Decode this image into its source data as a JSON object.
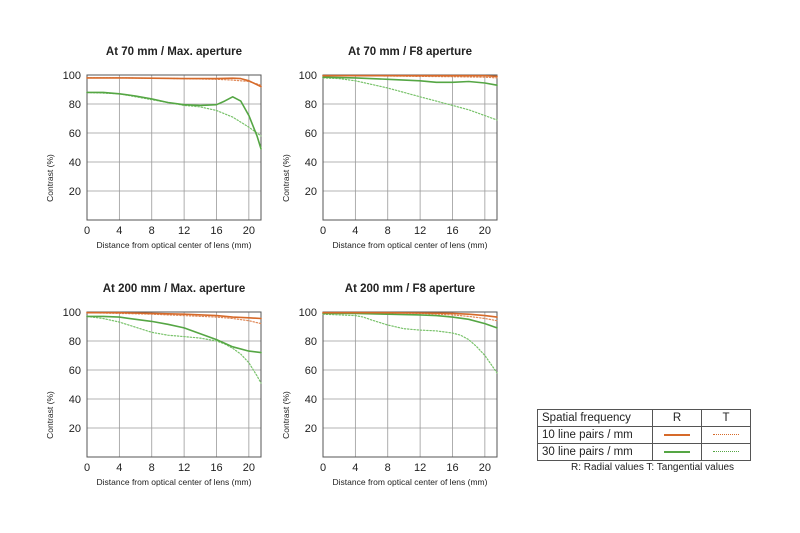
{
  "chart_data": [
    {
      "type": "line",
      "title": "At 70 mm / Max. aperture",
      "xlabel": "Distance from optical center of lens (mm)",
      "ylabel": "Contrast (%)",
      "xlim": [
        0,
        21.5
      ],
      "ylim": [
        0,
        100
      ],
      "xticks": [
        0,
        4,
        8,
        12,
        16,
        20
      ],
      "yticks": [
        20,
        40,
        60,
        80,
        100
      ],
      "grid": true,
      "series": [
        {
          "freq": "10 line pairs / mm",
          "kind": "R",
          "x": [
            0,
            4,
            8,
            12,
            16,
            18,
            19,
            20,
            21.5
          ],
          "y": [
            98,
            98,
            97.8,
            97.5,
            97.5,
            97.8,
            97.5,
            96,
            92
          ]
        },
        {
          "freq": "10 line pairs / mm",
          "kind": "T",
          "x": [
            0,
            4,
            8,
            12,
            16,
            18,
            19,
            20,
            21.5
          ],
          "y": [
            98,
            98,
            97.8,
            97.5,
            97,
            96.5,
            96,
            95.5,
            93
          ]
        },
        {
          "freq": "30 line pairs / mm",
          "kind": "R",
          "x": [
            0,
            2,
            4,
            6,
            8,
            10,
            12,
            14,
            16,
            17,
            18,
            19,
            20,
            21,
            21.5
          ],
          "y": [
            88,
            88,
            87,
            85.5,
            83.5,
            81,
            79.5,
            79,
            79.5,
            82,
            85,
            82,
            72,
            58,
            49
          ]
        },
        {
          "freq": "30 line pairs / mm",
          "kind": "T",
          "x": [
            0,
            4,
            8,
            12,
            14,
            16,
            18,
            20,
            21.5
          ],
          "y": [
            88,
            87,
            83,
            79,
            78,
            75.5,
            71,
            64,
            58
          ]
        }
      ]
    },
    {
      "type": "line",
      "title": "At 70 mm / F8 aperture",
      "xlabel": "Distance from optical center of lens (mm)",
      "ylabel": "Contrast (%)",
      "xlim": [
        0,
        21.5
      ],
      "ylim": [
        0,
        100
      ],
      "xticks": [
        0,
        4,
        8,
        12,
        16,
        20
      ],
      "yticks": [
        20,
        40,
        60,
        80,
        100
      ],
      "grid": true,
      "series": [
        {
          "freq": "10 line pairs / mm",
          "kind": "R",
          "x": [
            0,
            4,
            8,
            12,
            16,
            20,
            21.5
          ],
          "y": [
            99.5,
            99.5,
            99.5,
            99.5,
            99.5,
            99.5,
            99
          ]
        },
        {
          "freq": "10 line pairs / mm",
          "kind": "T",
          "x": [
            0,
            4,
            8,
            12,
            16,
            20,
            21.5
          ],
          "y": [
            99.5,
            99.5,
            99.3,
            99,
            98.8,
            98.5,
            98
          ]
        },
        {
          "freq": "30 line pairs / mm",
          "kind": "R",
          "x": [
            0,
            4,
            8,
            12,
            14,
            16,
            18,
            20,
            21.5
          ],
          "y": [
            98.5,
            98,
            97,
            96,
            95,
            95,
            95.5,
            94.5,
            93
          ]
        },
        {
          "freq": "30 line pairs / mm",
          "kind": "T",
          "x": [
            0,
            2,
            4,
            6,
            8,
            10,
            12,
            14,
            16,
            18,
            20,
            21.5
          ],
          "y": [
            98,
            97.5,
            96,
            93.5,
            91,
            88,
            85,
            82,
            79,
            76,
            72,
            69
          ]
        }
      ]
    },
    {
      "type": "line",
      "title": "At 200 mm / Max. aperture",
      "xlabel": "Distance from optical center of lens (mm)",
      "ylabel": "Contrast (%)",
      "xlim": [
        0,
        21.5
      ],
      "ylim": [
        0,
        100
      ],
      "xticks": [
        0,
        4,
        8,
        12,
        16,
        20
      ],
      "yticks": [
        20,
        40,
        60,
        80,
        100
      ],
      "grid": true,
      "series": [
        {
          "freq": "10 line pairs / mm",
          "kind": "R",
          "x": [
            0,
            4,
            8,
            12,
            16,
            18,
            20,
            21.5
          ],
          "y": [
            99.5,
            99.5,
            99,
            98.5,
            97.5,
            96.5,
            96,
            95.5
          ]
        },
        {
          "freq": "10 line pairs / mm",
          "kind": "T",
          "x": [
            0,
            4,
            8,
            12,
            16,
            18,
            20,
            21.5
          ],
          "y": [
            99.5,
            99,
            98.5,
            97.5,
            96.5,
            95.5,
            94,
            92
          ]
        },
        {
          "freq": "30 line pairs / mm",
          "kind": "R",
          "x": [
            0,
            2,
            4,
            6,
            8,
            10,
            12,
            14,
            16,
            18,
            20,
            21.5
          ],
          "y": [
            97,
            97,
            96.5,
            95,
            93.5,
            91.5,
            89,
            85,
            81,
            76,
            73,
            72
          ]
        },
        {
          "freq": "30 line pairs / mm",
          "kind": "T",
          "x": [
            0,
            2,
            4,
            6,
            8,
            10,
            12,
            14,
            16,
            17,
            18,
            19,
            20,
            21,
            21.5
          ],
          "y": [
            97,
            95.5,
            93,
            89.5,
            86,
            84,
            83,
            82,
            80,
            78,
            75,
            71,
            65,
            56,
            51
          ]
        }
      ]
    },
    {
      "type": "line",
      "title": "At 200 mm / F8 aperture",
      "xlabel": "Distance from optical center of lens (mm)",
      "ylabel": "Contrast (%)",
      "xlim": [
        0,
        21.5
      ],
      "ylim": [
        0,
        100
      ],
      "xticks": [
        0,
        4,
        8,
        12,
        16,
        20
      ],
      "yticks": [
        20,
        40,
        60,
        80,
        100
      ],
      "grid": true,
      "series": [
        {
          "freq": "10 line pairs / mm",
          "kind": "R",
          "x": [
            0,
            4,
            8,
            12,
            16,
            18,
            20,
            21.5
          ],
          "y": [
            99.5,
            99.5,
            99.5,
            99.3,
            99,
            98.5,
            97.5,
            96.5
          ]
        },
        {
          "freq": "10 line pairs / mm",
          "kind": "T",
          "x": [
            0,
            4,
            8,
            12,
            16,
            18,
            20,
            21.5
          ],
          "y": [
            99.5,
            99.5,
            99.3,
            99,
            98,
            97,
            95.5,
            94
          ]
        },
        {
          "freq": "30 line pairs / mm",
          "kind": "R",
          "x": [
            0,
            4,
            8,
            12,
            14,
            16,
            18,
            20,
            21.5
          ],
          "y": [
            99,
            99,
            98.5,
            98,
            97.5,
            96.5,
            95,
            92,
            89
          ]
        },
        {
          "freq": "30 line pairs / mm",
          "kind": "T",
          "x": [
            0,
            2,
            4,
            5,
            6,
            8,
            10,
            12,
            14,
            16,
            17,
            18,
            19,
            20,
            21,
            21.5
          ],
          "y": [
            98.5,
            98,
            97.5,
            96.5,
            94.5,
            91,
            88.5,
            87.5,
            87,
            85.5,
            84,
            81,
            76,
            70,
            62,
            58
          ]
        }
      ]
    }
  ],
  "legend": {
    "header": "Spatial frequency",
    "col_r": "R",
    "col_t": "T",
    "row1": "10 line pairs / mm",
    "row2": "30 line pairs / mm",
    "note": "R: Radial values  T: Tangential values"
  },
  "colors": {
    "lp10": "#d66a2a",
    "lp30": "#55a644",
    "lp10_t": "#e08a5a",
    "lp30_t": "#78c26a"
  }
}
